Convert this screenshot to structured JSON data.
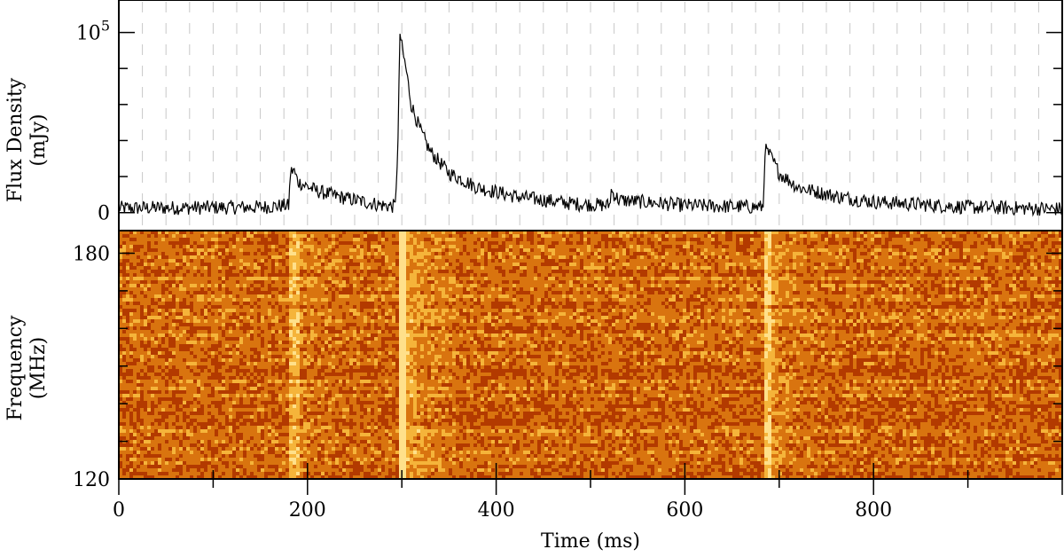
{
  "chart_data": [
    {
      "type": "line",
      "panel": "top",
      "ylabel_line1": "Flux Density",
      "ylabel_line2": "(mJy)",
      "ytick_labels": [
        {
          "value": 0,
          "label": "0"
        },
        {
          "value": 100000,
          "label": "10",
          "sup": "5"
        }
      ],
      "ylim": [
        -10000,
        118000
      ],
      "xlim": [
        0,
        1000
      ],
      "gridlines_x_ms": "every 25 ms, dashed grey",
      "series": [
        {
          "values_description_points": [
            [
              0,
              2500
            ],
            [
              150,
              3000
            ],
            [
              178,
              4000
            ],
            [
              180,
              3500
            ],
            [
              182,
              22000
            ],
            [
              185,
              24000
            ],
            [
              190,
              17000
            ],
            [
              210,
              12000
            ],
            [
              240,
              8000
            ],
            [
              280,
              4000
            ],
            [
              293,
              3500
            ],
            [
              296,
              40000
            ],
            [
              298,
              100000
            ],
            [
              300,
              92000
            ],
            [
              305,
              78000
            ],
            [
              310,
              60000
            ],
            [
              320,
              45000
            ],
            [
              330,
              34000
            ],
            [
              340,
              28000
            ],
            [
              350,
              22000
            ],
            [
              380,
              14000
            ],
            [
              420,
              9000
            ],
            [
              480,
              5000
            ],
            [
              520,
              4000
            ],
            [
              522,
              12000
            ],
            [
              530,
              7000
            ],
            [
              600,
              4000
            ],
            [
              683,
              3000
            ],
            [
              685,
              35000
            ],
            [
              690,
              32000
            ],
            [
              700,
              22000
            ],
            [
              720,
              14000
            ],
            [
              760,
              9000
            ],
            [
              800,
              6000
            ],
            [
              900,
              3000
            ],
            [
              1000,
              2000
            ]
          ]
        }
      ]
    },
    {
      "type": "heatmap",
      "panel": "bottom",
      "xlabel": "Time (ms)",
      "ylabel_line1": "Frequency",
      "ylabel_line2": "(MHz)",
      "xlim": [
        0,
        1000
      ],
      "ylim": [
        120,
        186
      ],
      "xtick_labels": [
        {
          "value": 0,
          "label": "0"
        },
        {
          "value": 200,
          "label": "200"
        },
        {
          "value": 400,
          "label": "400"
        },
        {
          "value": 600,
          "label": "600"
        },
        {
          "value": 800,
          "label": "800"
        }
      ],
      "ytick_labels": [
        {
          "value": 120,
          "label": "120"
        },
        {
          "value": 180,
          "label": "180"
        }
      ],
      "colormap": [
        "#7a1400",
        "#b33a00",
        "#d9740f",
        "#f5b43a",
        "#ffe08a"
      ],
      "bright_bands_ms": [
        182,
        296,
        685
      ]
    }
  ]
}
